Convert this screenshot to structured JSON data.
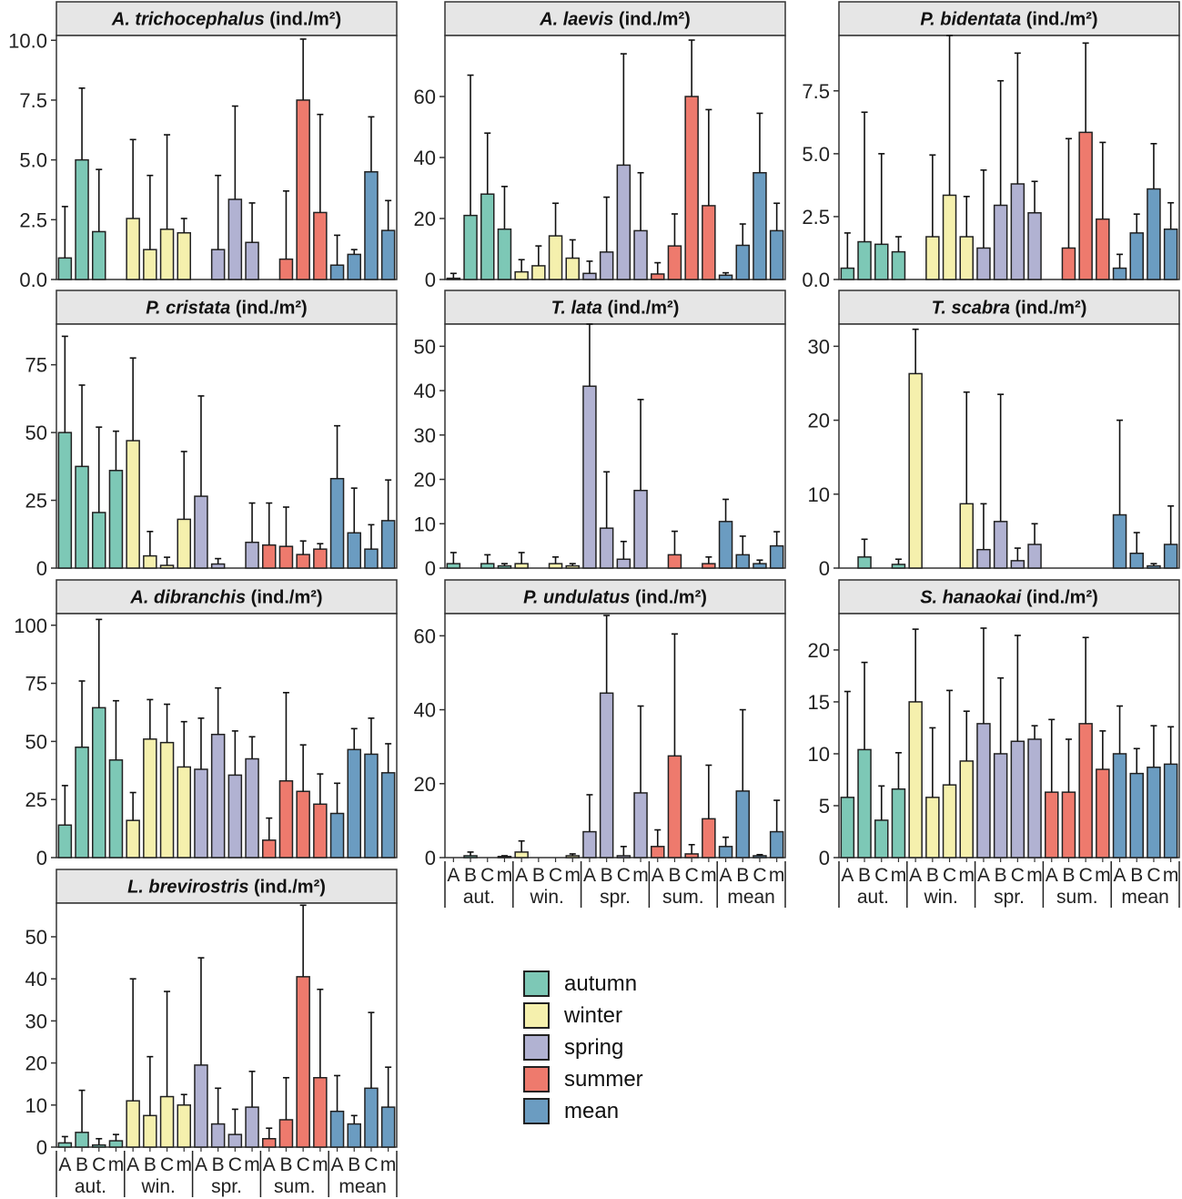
{
  "figure": {
    "y_unit_suffix": "(ind./m²)",
    "group_labels": [
      "aut.",
      "win.",
      "spr.",
      "sum.",
      "mean"
    ],
    "site_labels": [
      "A",
      "B",
      "C",
      "m"
    ],
    "season_colors": {
      "autumn": "#7dc8b6",
      "winter": "#f5f0ad",
      "spring": "#b1b2d2",
      "summer": "#ee7a6d",
      "mean": "#6b9cc1"
    }
  },
  "legend": {
    "items": [
      {
        "key": "autumn",
        "label": "autumn",
        "color": "#7dc8b6"
      },
      {
        "key": "winter",
        "label": "winter",
        "color": "#f5f0ad"
      },
      {
        "key": "spring",
        "label": "spring",
        "color": "#b1b2d2"
      },
      {
        "key": "summer",
        "label": "summer",
        "color": "#ee7a6d"
      },
      {
        "key": "mean",
        "label": "mean",
        "color": "#6b9cc1"
      }
    ]
  },
  "chart_data": [
    {
      "type": "bar",
      "title": "A. trichocephalus",
      "unit": "(ind./m²)",
      "ylim": [
        0,
        10.2
      ],
      "yticks": [
        0,
        2.5,
        5,
        7.5,
        10
      ],
      "tick_labels": [
        "0.0",
        "2.5",
        "5.0",
        "7.5",
        "10.0"
      ],
      "values": [
        0.9,
        5.0,
        2.0,
        null,
        2.55,
        1.25,
        2.1,
        1.95,
        null,
        1.25,
        3.35,
        1.55,
        null,
        0.85,
        7.5,
        2.8,
        0.6,
        1.05,
        4.5,
        2.05
      ],
      "errors": [
        2.15,
        3.0,
        2.6,
        null,
        3.3,
        3.1,
        3.95,
        0.6,
        null,
        3.1,
        3.9,
        1.65,
        null,
        2.85,
        2.55,
        4.1,
        1.25,
        0.2,
        2.3,
        1.25
      ]
    },
    {
      "type": "bar",
      "title": "A. laevis",
      "unit": "(ind./m²)",
      "ylim": [
        0,
        80
      ],
      "yticks": [
        0,
        20,
        40,
        60
      ],
      "tick_labels": [
        "0",
        "20",
        "40",
        "60"
      ],
      "values": [
        0.4,
        21.0,
        28.0,
        16.5,
        2.5,
        4.5,
        14.3,
        7.0,
        2.0,
        9.0,
        37.5,
        16.0,
        1.8,
        11.0,
        60.0,
        24.2,
        1.4,
        11.2,
        35.0,
        16.0
      ],
      "errors": [
        1.6,
        46.0,
        20.0,
        14.0,
        4.0,
        6.5,
        10.7,
        6.0,
        4.0,
        18.0,
        36.5,
        19.0,
        3.7,
        10.5,
        18.5,
        31.5,
        0.8,
        7.0,
        19.5,
        9.0
      ]
    },
    {
      "type": "bar",
      "title": "P. bidentata",
      "unit": "(ind./m²)",
      "ylim": [
        0,
        9.7
      ],
      "yticks": [
        0,
        2.5,
        5,
        7.5
      ],
      "tick_labels": [
        "0.0",
        "2.5",
        "5.0",
        "7.5"
      ],
      "values": [
        0.45,
        1.5,
        1.4,
        1.1,
        null,
        1.7,
        3.35,
        1.7,
        1.25,
        2.95,
        3.8,
        2.65,
        null,
        1.25,
        5.85,
        2.4,
        0.45,
        1.85,
        3.6,
        2.0
      ],
      "errors": [
        1.4,
        5.15,
        3.6,
        0.6,
        null,
        3.25,
        6.35,
        1.6,
        3.1,
        4.95,
        5.2,
        1.25,
        null,
        4.35,
        3.55,
        3.05,
        0.55,
        0.75,
        1.8,
        1.05
      ]
    },
    {
      "type": "bar",
      "title": "P. cristata",
      "unit": "(ind./m²)",
      "ylim": [
        0,
        90
      ],
      "yticks": [
        0,
        25,
        50,
        75
      ],
      "tick_labels": [
        "0",
        "25",
        "50",
        "75"
      ],
      "values": [
        50.0,
        37.5,
        20.5,
        36.0,
        47.0,
        4.5,
        1.0,
        18.0,
        26.5,
        1.5,
        null,
        9.5,
        8.5,
        8.0,
        5.0,
        7.0,
        33.0,
        13.0,
        7.0,
        17.5
      ],
      "errors": [
        35.5,
        30.0,
        31.5,
        14.5,
        30.5,
        9.0,
        3.0,
        25.0,
        37.0,
        2.0,
        null,
        14.5,
        15.5,
        14.5,
        5.0,
        2.0,
        19.5,
        16.5,
        9.0,
        15.0
      ]
    },
    {
      "type": "bar",
      "title": "T. lata",
      "unit": "(ind./m²)",
      "ylim": [
        0,
        55
      ],
      "yticks": [
        0,
        10,
        20,
        30,
        40,
        50
      ],
      "tick_labels": [
        "0",
        "10",
        "20",
        "30",
        "40",
        "50"
      ],
      "values": [
        1.0,
        null,
        1.0,
        0.5,
        1.0,
        null,
        1.0,
        0.5,
        41.0,
        9.0,
        2.0,
        17.5,
        null,
        3.0,
        null,
        1.0,
        10.5,
        3.0,
        1.0,
        5.0
      ],
      "errors": [
        2.5,
        null,
        2.0,
        0.5,
        2.5,
        null,
        1.5,
        0.5,
        14.0,
        12.7,
        4.0,
        20.5,
        null,
        5.3,
        null,
        1.5,
        5.0,
        4.2,
        0.8,
        3.2
      ]
    },
    {
      "type": "bar",
      "title": "T. scabra",
      "unit": "(ind./m²)",
      "ylim": [
        0,
        33
      ],
      "yticks": [
        0,
        10,
        20,
        30
      ],
      "tick_labels": [
        "0",
        "10",
        "20",
        "30"
      ],
      "values": [
        null,
        1.5,
        null,
        0.5,
        26.3,
        null,
        null,
        8.7,
        2.5,
        6.3,
        1.0,
        3.2,
        null,
        null,
        null,
        null,
        7.2,
        2.0,
        0.3,
        3.2
      ],
      "errors": [
        null,
        2.4,
        null,
        0.7,
        6.0,
        null,
        null,
        15.1,
        6.2,
        17.2,
        1.7,
        2.8,
        null,
        null,
        null,
        null,
        12.8,
        2.8,
        0.3,
        5.2
      ]
    },
    {
      "type": "bar",
      "title": "A. dibranchis",
      "unit": "(ind./m²)",
      "ylim": [
        0,
        105
      ],
      "yticks": [
        0,
        25,
        50,
        75,
        100
      ],
      "tick_labels": [
        "0",
        "25",
        "50",
        "75",
        "100"
      ],
      "values": [
        14.0,
        47.5,
        64.5,
        42.0,
        16.0,
        51.0,
        49.5,
        39.0,
        38.0,
        53.0,
        35.5,
        42.5,
        7.5,
        33.0,
        28.5,
        23.0,
        19.0,
        46.5,
        44.5,
        36.5
      ],
      "errors": [
        17.0,
        28.5,
        38.0,
        25.5,
        12.0,
        17.0,
        16.5,
        19.5,
        22.0,
        20.0,
        19.0,
        9.5,
        9.5,
        38.0,
        20.0,
        13.0,
        13.0,
        9.0,
        15.5,
        12.5
      ]
    },
    {
      "type": "bar",
      "title": "P. undulatus",
      "unit": "(ind./m²)",
      "ylim": [
        0,
        66
      ],
      "yticks": [
        0,
        20,
        40,
        60
      ],
      "tick_labels": [
        "0",
        "20",
        "40",
        "60"
      ],
      "values": [
        null,
        0.5,
        null,
        0.3,
        1.5,
        null,
        null,
        0.5,
        7.0,
        44.5,
        0.5,
        17.5,
        3.0,
        27.5,
        1.0,
        10.5,
        3.0,
        18.0,
        0.5,
        7.0
      ],
      "errors": [
        null,
        1.0,
        null,
        0.2,
        3.0,
        null,
        null,
        0.5,
        10.0,
        21.0,
        2.5,
        23.5,
        4.5,
        33.0,
        2.5,
        14.5,
        2.5,
        22.0,
        0.3,
        8.5
      ]
    },
    {
      "type": "bar",
      "title": "S. hanaokai",
      "unit": "(ind./m²)",
      "ylim": [
        0,
        23.5
      ],
      "yticks": [
        0,
        5,
        10,
        15,
        20
      ],
      "tick_labels": [
        "0",
        "5",
        "10",
        "15",
        "20"
      ],
      "values": [
        5.8,
        10.4,
        3.6,
        6.6,
        15.0,
        5.8,
        7.0,
        9.3,
        12.9,
        10.0,
        11.2,
        11.4,
        6.3,
        6.3,
        12.9,
        8.5,
        10.0,
        8.1,
        8.7,
        9.0
      ],
      "errors": [
        10.2,
        8.4,
        3.3,
        3.5,
        7.0,
        6.7,
        9.1,
        4.8,
        9.2,
        7.3,
        10.2,
        1.3,
        7.0,
        5.1,
        8.3,
        3.7,
        4.6,
        2.4,
        4.0,
        3.6
      ]
    },
    {
      "type": "bar",
      "title": "L. brevirostris",
      "unit": "(ind./m²)",
      "ylim": [
        0,
        58
      ],
      "yticks": [
        0,
        10,
        20,
        30,
        40,
        50
      ],
      "tick_labels": [
        "0",
        "10",
        "20",
        "30",
        "40",
        "50"
      ],
      "values": [
        1.0,
        3.5,
        0.5,
        1.5,
        11.0,
        7.5,
        12.0,
        10.0,
        19.5,
        5.5,
        3.0,
        9.5,
        2.0,
        6.5,
        40.5,
        16.5,
        8.5,
        5.5,
        14.0,
        9.5
      ],
      "errors": [
        1.5,
        10.0,
        1.5,
        1.5,
        29.0,
        14.0,
        25.0,
        2.5,
        25.5,
        8.5,
        6.0,
        8.5,
        2.5,
        10.0,
        17.0,
        21.0,
        8.5,
        2.0,
        18.0,
        9.5
      ]
    }
  ]
}
